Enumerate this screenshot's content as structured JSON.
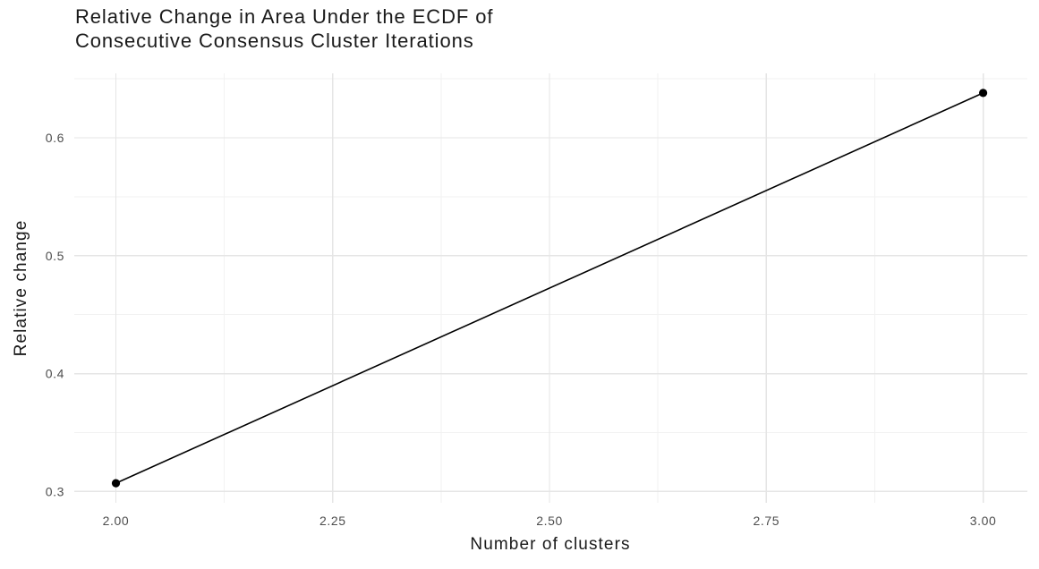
{
  "chart_data": {
    "type": "line",
    "title": "Relative Change in Area Under the ECDF of Consecutive Consensus Cluster Iterations",
    "title_lines": [
      "Relative Change in Area Under the ECDF of",
      "Consecutive Consensus Cluster Iterations"
    ],
    "xlabel": "Number of clusters",
    "ylabel": "Relative change",
    "x": [
      2.0,
      3.0
    ],
    "y": [
      0.307,
      0.638
    ],
    "x_ticks": [
      2.0,
      2.25,
      2.5,
      2.75,
      3.0
    ],
    "x_tick_labels": [
      "2.00",
      "2.25",
      "2.50",
      "2.75",
      "3.00"
    ],
    "y_ticks": [
      0.3,
      0.4,
      0.5,
      0.6
    ],
    "y_tick_labels": [
      "0.3",
      "0.4",
      "0.5",
      "0.6"
    ],
    "x_minor_gridlines": [
      2.125,
      2.375,
      2.625,
      2.875
    ],
    "y_minor_gridlines": [
      0.35,
      0.45,
      0.55,
      0.65
    ],
    "xlim": [
      1.952,
      3.051
    ],
    "ylim": [
      0.2904,
      0.6546
    ],
    "grid": true,
    "legend": false,
    "series_color": "#000000",
    "point_color": "#000000",
    "grid_major_color": "#e5e5e5",
    "grid_minor_color": "#f2f2f2",
    "tick_label_color": "#4d4d4d",
    "title_color": "#1a1a1a",
    "axis_title_color": "#1a1a1a",
    "background_color": "#ffffff"
  }
}
